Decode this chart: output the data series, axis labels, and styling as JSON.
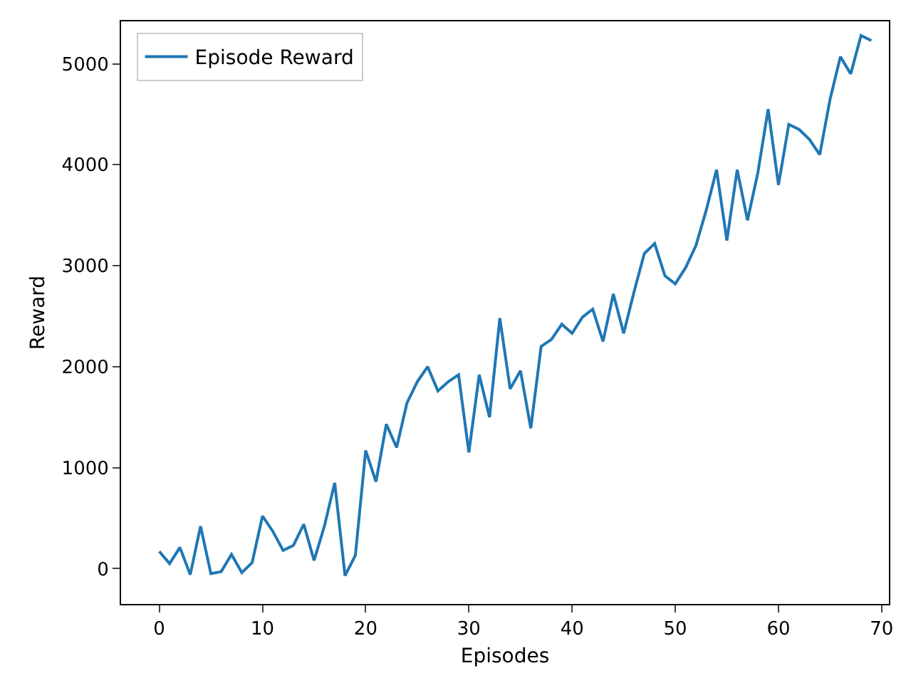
{
  "chart_data": {
    "type": "line",
    "xlabel": "Episodes",
    "ylabel": "Reward",
    "x": [
      0,
      1,
      2,
      3,
      4,
      5,
      6,
      7,
      8,
      9,
      10,
      11,
      12,
      13,
      14,
      15,
      16,
      17,
      18,
      19,
      20,
      21,
      22,
      23,
      24,
      25,
      26,
      27,
      28,
      29,
      30,
      31,
      32,
      33,
      34,
      35,
      36,
      37,
      38,
      39,
      40,
      41,
      42,
      43,
      44,
      45,
      46,
      47,
      48,
      49,
      50,
      51,
      52,
      53,
      54,
      55,
      56,
      57,
      58,
      59,
      60,
      61,
      62,
      63,
      64,
      65,
      66,
      67,
      68,
      69
    ],
    "series": [
      {
        "name": "Episode Reward",
        "color": "#1f77b4",
        "values": [
          170,
          50,
          210,
          -60,
          420,
          -50,
          -30,
          140,
          -40,
          60,
          520,
          370,
          180,
          230,
          440,
          80,
          420,
          850,
          -70,
          130,
          1170,
          860,
          1430,
          1200,
          1640,
          1850,
          2000,
          1760,
          1850,
          1920,
          1150,
          1920,
          1500,
          2480,
          1780,
          1960,
          1390,
          2200,
          2270,
          2420,
          2330,
          2490,
          2570,
          2250,
          2720,
          2330,
          2740,
          3120,
          3220,
          2900,
          2820,
          2980,
          3200,
          3550,
          3950,
          3250,
          3950,
          3450,
          3920,
          4550,
          3800,
          4400,
          4350,
          4250,
          4100,
          4650,
          5070,
          4900,
          5280,
          5230
        ]
      }
    ],
    "xlim": [
      -3.7,
      70.7
    ],
    "xticks": [
      0,
      10,
      20,
      30,
      40,
      50,
      60,
      70
    ],
    "ylim": [
      -350,
      5420
    ],
    "yticks": [
      0,
      1000,
      2000,
      3000,
      4000,
      5000
    ],
    "grid": false,
    "legend": "top left",
    "line_style": "solid",
    "marker": "none"
  }
}
